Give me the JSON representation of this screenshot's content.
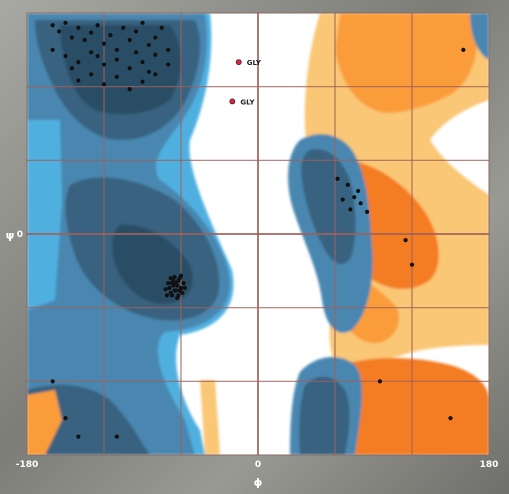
{
  "chart_data": {
    "type": "scatter",
    "title": "",
    "xlabel": "ϕ",
    "ylabel": "ψ",
    "xlim": [
      -180,
      180
    ],
    "ylim": [
      -180,
      180
    ],
    "x_ticks": [
      "-180",
      "0",
      "180"
    ],
    "y_ticks": [
      "0"
    ],
    "grid": true,
    "legend": "none",
    "colors": {
      "background": "#ffffff",
      "blue_light": "#4fb0e0",
      "blue_mid": "#4a87b0",
      "blue_dark": "#38627f",
      "blue_darkest": "#2b4d66",
      "yellow": "#f9c774",
      "orange": "#fb9c3a",
      "orange_dark": "#f47b22",
      "grid": "#a0615a",
      "point": "#111111",
      "glycine_point": "#e1214a"
    },
    "series": [
      {
        "points": [
          [
            -160,
            170
          ],
          [
            -155,
            165
          ],
          [
            -150,
            172
          ],
          [
            -145,
            160
          ],
          [
            -140,
            168
          ],
          [
            -135,
            158
          ],
          [
            -130,
            164
          ],
          [
            -125,
            170
          ],
          [
            -120,
            155
          ],
          [
            -115,
            162
          ],
          [
            -110,
            150
          ],
          [
            -105,
            168
          ],
          [
            -100,
            158
          ],
          [
            -95,
            165
          ],
          [
            -90,
            172
          ],
          [
            -85,
            154
          ],
          [
            -80,
            160
          ],
          [
            -75,
            168
          ],
          [
            -70,
            150
          ],
          [
            -160,
            150
          ],
          [
            -150,
            145
          ],
          [
            -140,
            140
          ],
          [
            -130,
            148
          ],
          [
            -120,
            138
          ],
          [
            -110,
            142
          ],
          [
            -100,
            135
          ],
          [
            -90,
            140
          ],
          [
            -80,
            146
          ],
          [
            -70,
            138
          ],
          [
            -140,
            125
          ],
          [
            -130,
            130
          ],
          [
            -120,
            122
          ],
          [
            -110,
            128
          ],
          [
            -100,
            118
          ],
          [
            -90,
            124
          ],
          [
            -80,
            130
          ],
          [
            -125,
            145
          ],
          [
            -95,
            148
          ],
          [
            -145,
            135
          ],
          [
            -85,
            132
          ],
          [
            -72,
            -45
          ],
          [
            -70,
            -40
          ],
          [
            -68,
            -48
          ],
          [
            -66,
            -42
          ],
          [
            -64,
            -46
          ],
          [
            -62,
            -38
          ],
          [
            -60,
            -44
          ],
          [
            -58,
            -40
          ],
          [
            -65,
            -35
          ],
          [
            -67,
            -50
          ],
          [
            -63,
            -52
          ],
          [
            -61,
            -36
          ],
          [
            -69,
            -44
          ],
          [
            -59,
            -48
          ],
          [
            -64,
            -40
          ],
          [
            -66,
            -38
          ],
          [
            -62,
            -50
          ],
          [
            -60,
            -34
          ],
          [
            -68,
            -36
          ],
          [
            -57,
            -44
          ],
          [
            -71,
            -50
          ],
          [
            -65,
            -46
          ],
          [
            -63,
            -42
          ],
          [
            -67,
            -40
          ],
          [
            -61,
            -46
          ],
          [
            70,
            40
          ],
          [
            75,
            30
          ],
          [
            80,
            25
          ],
          [
            72,
            20
          ],
          [
            78,
            35
          ],
          [
            66,
            28
          ],
          [
            85,
            18
          ],
          [
            62,
            45
          ],
          [
            115,
            -5
          ],
          [
            120,
            -25
          ],
          [
            160,
            150
          ],
          [
            95,
            -120
          ],
          [
            150,
            -150
          ],
          [
            -150,
            -150
          ],
          [
            -140,
            -165
          ],
          [
            -110,
            -165
          ],
          [
            -160,
            -120
          ]
        ]
      },
      {
        "points": [
          [
            -15,
            140
          ],
          [
            -20,
            108
          ]
        ]
      }
    ],
    "point_labels": [
      "GLY",
      "GLY"
    ]
  }
}
